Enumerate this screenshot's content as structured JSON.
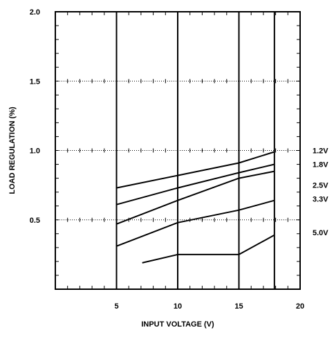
{
  "chart_data": {
    "type": "line",
    "title": "",
    "xlabel": "INPUT  VOLTAGE (V)",
    "ylabel": "LOAD REGULATION (%)",
    "xlim": [
      0,
      20
    ],
    "ylim": [
      0,
      2.0
    ],
    "x_ticks": [
      {
        "value": 5,
        "label": "5"
      },
      {
        "value": 10,
        "label": "10"
      },
      {
        "value": 15,
        "label": "15"
      },
      {
        "value": 20,
        "label": "20"
      }
    ],
    "y_ticks": [
      {
        "value": 0.5,
        "label": "0.5"
      },
      {
        "value": 1.0,
        "label": "1.0"
      },
      {
        "value": 1.5,
        "label": "1.5"
      },
      {
        "value": 2.0,
        "label": "2.0"
      }
    ],
    "grid": {
      "major_vertical_x": [
        5,
        10,
        15,
        17.9
      ],
      "dotted_horizontal_y": [
        0.5,
        1.0,
        1.5
      ],
      "minor_tick_step_x": 1
    },
    "series": [
      {
        "name": "1.2V",
        "points": [
          [
            5,
            0.73
          ],
          [
            10,
            0.82
          ],
          [
            15,
            0.91
          ],
          [
            17.9,
            0.99
          ]
        ]
      },
      {
        "name": "1.8V",
        "points": [
          [
            5,
            0.61
          ],
          [
            10,
            0.73
          ],
          [
            15,
            0.84
          ],
          [
            17.9,
            0.9
          ]
        ]
      },
      {
        "name": "2.5V",
        "points": [
          [
            5,
            0.47
          ],
          [
            10,
            0.64
          ],
          [
            15,
            0.8
          ],
          [
            17.9,
            0.85
          ]
        ]
      },
      {
        "name": "3.3V",
        "points": [
          [
            5,
            0.31
          ],
          [
            10,
            0.48
          ],
          [
            15,
            0.57
          ],
          [
            17.9,
            0.64
          ]
        ]
      },
      {
        "name": "5.0V",
        "points": [
          [
            7.1,
            0.19
          ],
          [
            10,
            0.25
          ],
          [
            15,
            0.25
          ],
          [
            17.9,
            0.39
          ]
        ]
      }
    ],
    "legend_labels": [
      {
        "label": "1.2V",
        "y": 1.0
      },
      {
        "label": "1.8V",
        "y": 0.9
      },
      {
        "label": "2.5V",
        "y": 0.75
      },
      {
        "label": "3.3V",
        "y": 0.65
      },
      {
        "label": "5.0V",
        "y": 0.41
      }
    ],
    "colors": {
      "line": "#000000",
      "background": "#ffffff"
    }
  }
}
